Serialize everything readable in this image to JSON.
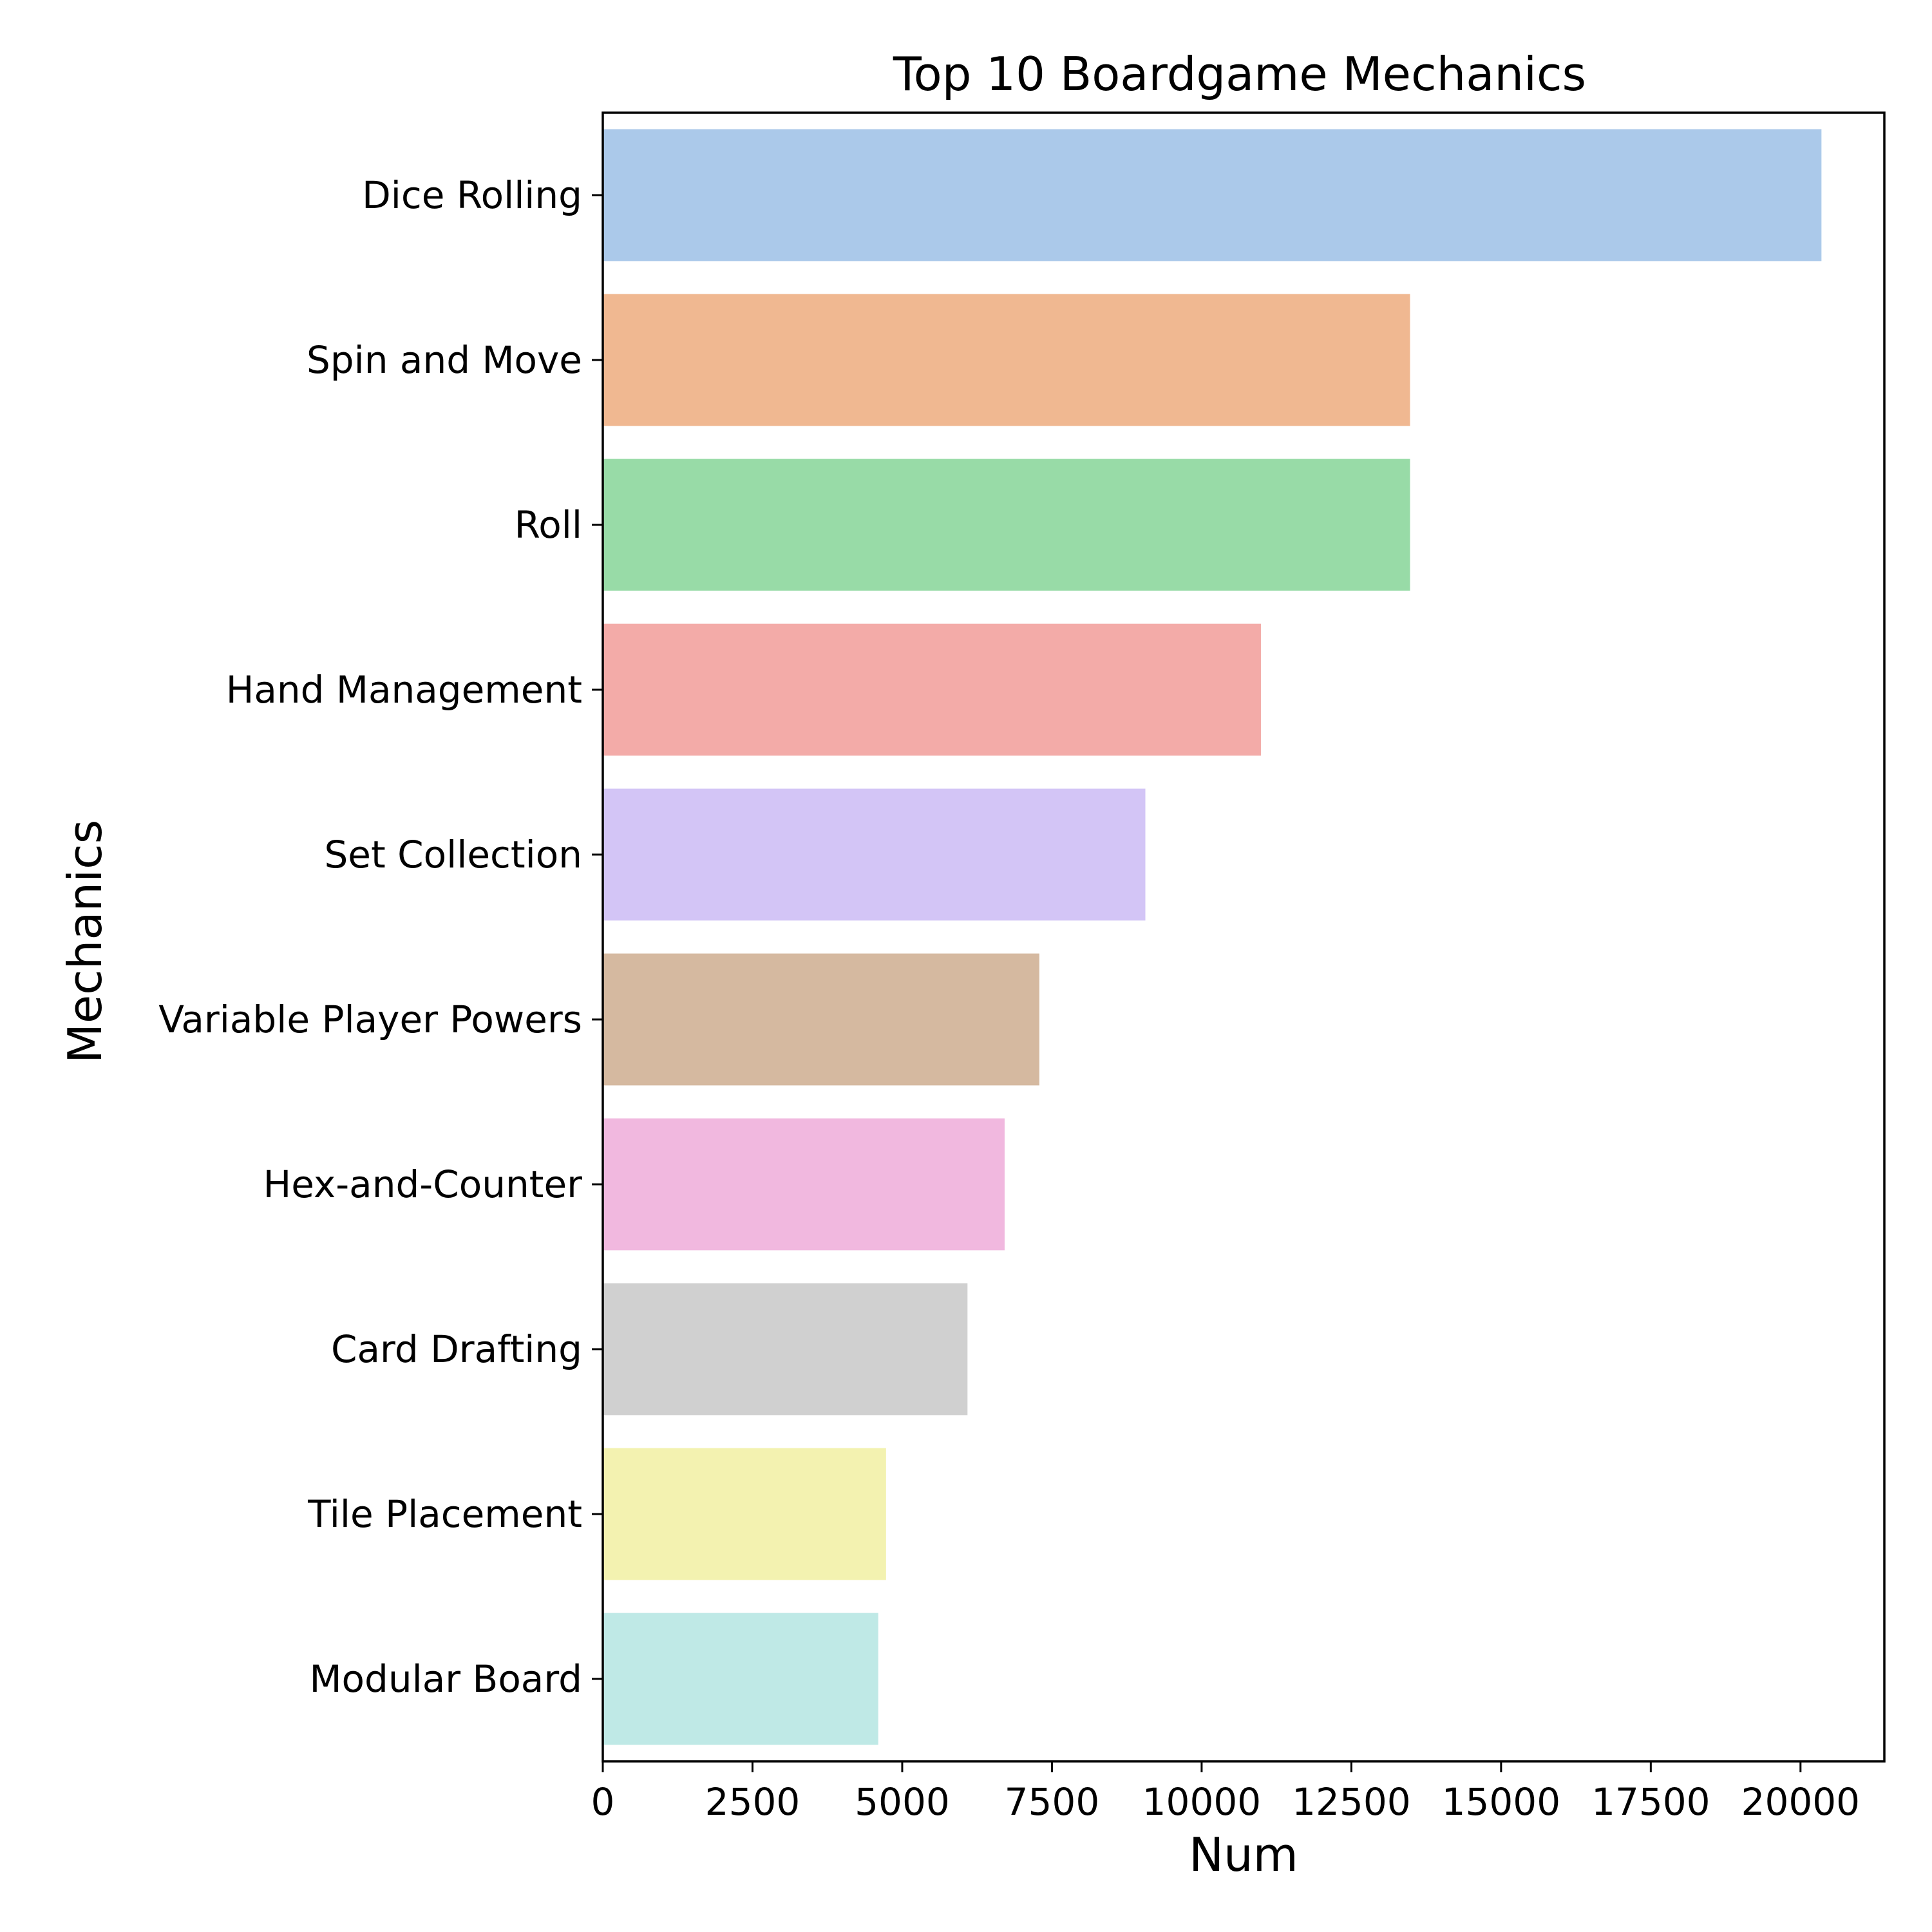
{
  "chart_data": {
    "type": "bar",
    "orientation": "horizontal",
    "title": "Top 10 Boardgame Mechanics",
    "xlabel": "Num",
    "ylabel": "Mechanics",
    "categories": [
      "Dice Rolling",
      "Spin and Move",
      "Roll",
      "Hand Management",
      "Set Collection",
      "Variable Player Powers",
      "Hex-and-Counter",
      "Card Drafting",
      "Tile Placement",
      "Modular Board"
    ],
    "values": [
      20350,
      13480,
      13480,
      10990,
      9060,
      7290,
      6710,
      6090,
      4730,
      4600
    ],
    "colors": [
      "#abc9ea",
      "#f0b891",
      "#98dba7",
      "#f3aba8",
      "#d3c5f6",
      "#d5b9a0",
      "#f1b8df",
      "#d0d0d0",
      "#f3f2b0",
      "#bfe9e6"
    ],
    "xlim": [
      0,
      21400
    ],
    "xticks": [
      0,
      2500,
      5000,
      7500,
      10000,
      12500,
      15000,
      17500,
      20000
    ],
    "xtick_labels": [
      "0",
      "2500",
      "5000",
      "7500",
      "10000",
      "12500",
      "15000",
      "17500",
      "20000"
    ],
    "grid": false,
    "legend": "none"
  }
}
